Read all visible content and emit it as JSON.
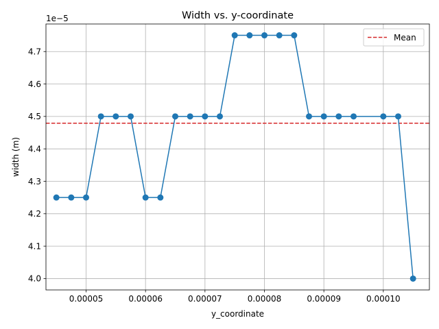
{
  "chart_data": {
    "type": "line",
    "title": "Width vs. y-coordinate",
    "xlabel": "y_coordinate",
    "ylabel": "width (m)",
    "y_offset_label": "1e−5",
    "xlim": [
      4.325e-05,
      0.00010775
    ],
    "ylim": [
      3.965,
      4.785
    ],
    "x_ticks": [
      5e-05,
      6e-05,
      7e-05,
      8e-05,
      9e-05,
      0.0001
    ],
    "x_tick_labels": [
      "0.00005",
      "0.00006",
      "0.00007",
      "0.00008",
      "0.00009",
      "0.00010"
    ],
    "y_ticks": [
      4.0,
      4.1,
      4.2,
      4.3,
      4.4,
      4.5,
      4.6,
      4.7
    ],
    "y_tick_labels": [
      "4.0",
      "4.1",
      "4.2",
      "4.3",
      "4.4",
      "4.5",
      "4.6",
      "4.7"
    ],
    "grid": true,
    "legend_position": "top-right",
    "legend": [
      "Mean"
    ],
    "series": [
      {
        "color": "#1f77b4",
        "marker": "circle",
        "x": [
          4.5e-05,
          4.75e-05,
          5e-05,
          5.25e-05,
          5.5e-05,
          5.75e-05,
          6e-05,
          6.25e-05,
          6.5e-05,
          6.75e-05,
          7e-05,
          7.25e-05,
          7.5e-05,
          7.75e-05,
          8e-05,
          8.25e-05,
          8.5e-05,
          8.75e-05,
          9e-05,
          9.25e-05,
          9.5e-05,
          0.0001,
          0.0001025,
          0.000105
        ],
        "y": [
          4.25,
          4.25,
          4.25,
          4.5,
          4.5,
          4.5,
          4.25,
          4.25,
          4.5,
          4.5,
          4.5,
          4.5,
          4.75,
          4.75,
          4.75,
          4.75,
          4.75,
          4.5,
          4.5,
          4.5,
          4.5,
          4.5,
          4.5,
          4.0
        ]
      }
    ],
    "mean_line": {
      "name": "Mean",
      "value": 4.479,
      "color": "#d62728",
      "style": "dashed"
    }
  }
}
